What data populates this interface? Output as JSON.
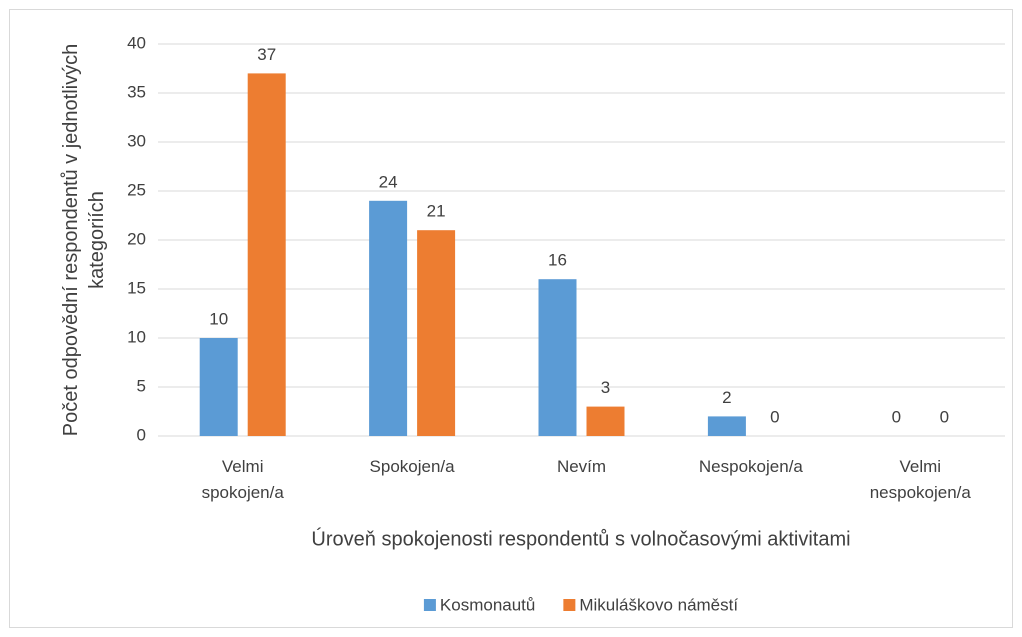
{
  "chart_data": {
    "type": "bar",
    "categories": [
      "Velmi spokojen/a",
      "Spokojen/a",
      "Nevím",
      "Nespokojen/a",
      "Velmi nespokojen/a"
    ],
    "series": [
      {
        "name": "Kosmonautů",
        "color": "#5b9bd5",
        "values": [
          10,
          24,
          16,
          2,
          0
        ]
      },
      {
        "name": "Mikuláškovo náměstí",
        "color": "#ed7d31",
        "values": [
          37,
          21,
          3,
          0,
          0
        ]
      }
    ],
    "xlabel": "Úroveň spokojenosti respondentů s volnočasovými aktivitami",
    "ylabel": "Počet odpovědní respondentů v jednotlivých kategoriích",
    "ylim": [
      0,
      40
    ],
    "yticks": [
      0,
      5,
      10,
      15,
      20,
      25,
      30,
      35,
      40
    ],
    "grid": true,
    "legend": "bottom"
  }
}
